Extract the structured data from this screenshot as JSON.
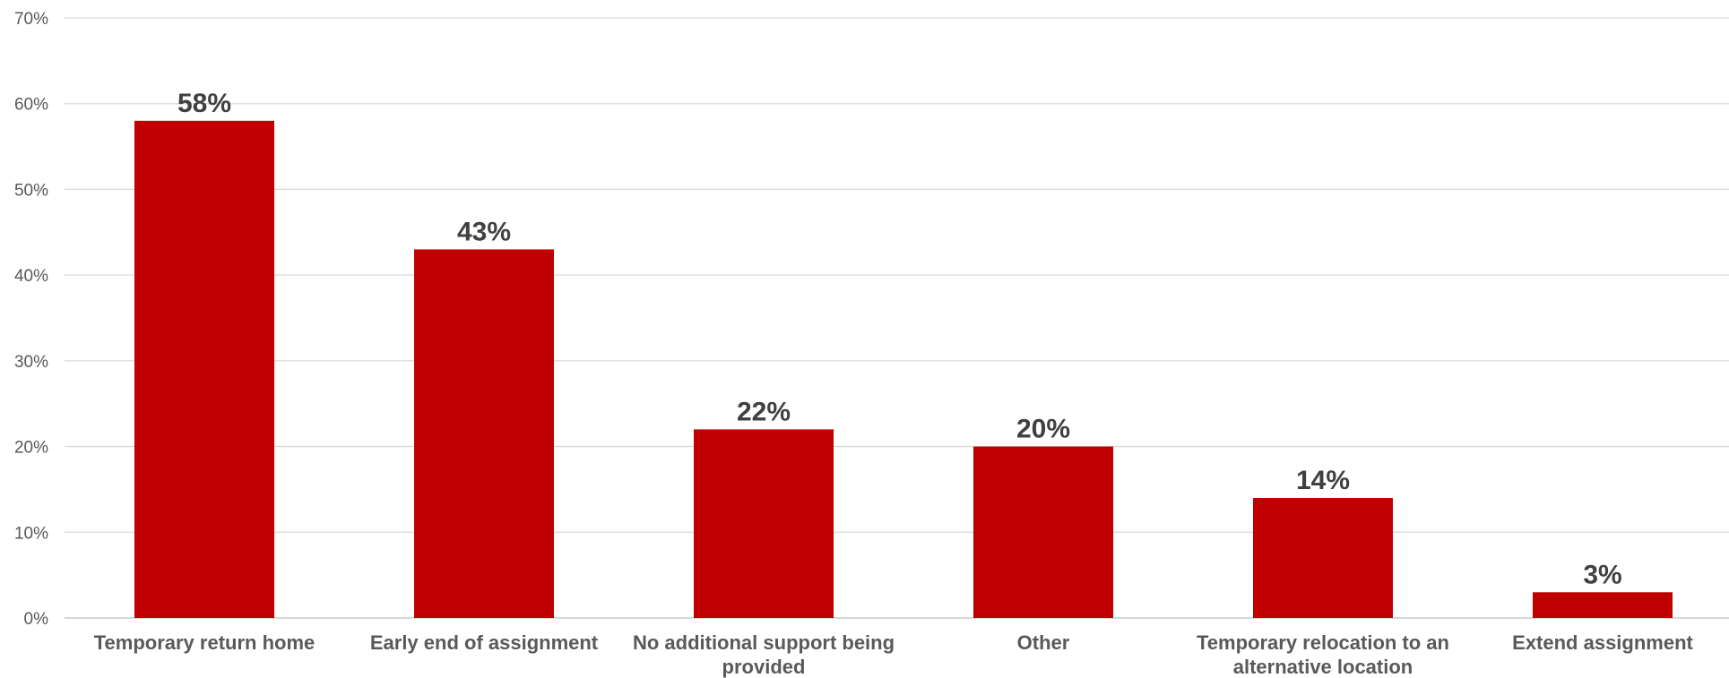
{
  "colors": {
    "bar": "#c00000",
    "grid": "#d9d9d9",
    "tick_text": "#595959",
    "label_text": "#404040"
  },
  "chart_data": {
    "type": "bar",
    "title": "",
    "xlabel": "",
    "ylabel": "",
    "categories": [
      "Temporary return home",
      "Early end of assignment",
      "No additional support being provided",
      "Other",
      "Temporary relocation to an alternative location",
      "Extend assignment"
    ],
    "category_lines": [
      [
        "Temporary return home"
      ],
      [
        "Early end of assignment"
      ],
      [
        "No additional support being",
        "provided"
      ],
      [
        "Other"
      ],
      [
        "Temporary relocation to an",
        "alternative location"
      ],
      [
        "Extend assignment"
      ]
    ],
    "values": [
      58,
      43,
      22,
      20,
      14,
      3
    ],
    "data_labels": [
      "58%",
      "43%",
      "22%",
      "20%",
      "14%",
      "3%"
    ],
    "ylim": [
      0,
      70
    ],
    "yticks": [
      0,
      10,
      20,
      30,
      40,
      50,
      60,
      70
    ],
    "ytick_labels": [
      "0%",
      "10%",
      "20%",
      "30%",
      "40%",
      "50%",
      "60%",
      "70%"
    ],
    "grid": true,
    "legend": "none"
  }
}
